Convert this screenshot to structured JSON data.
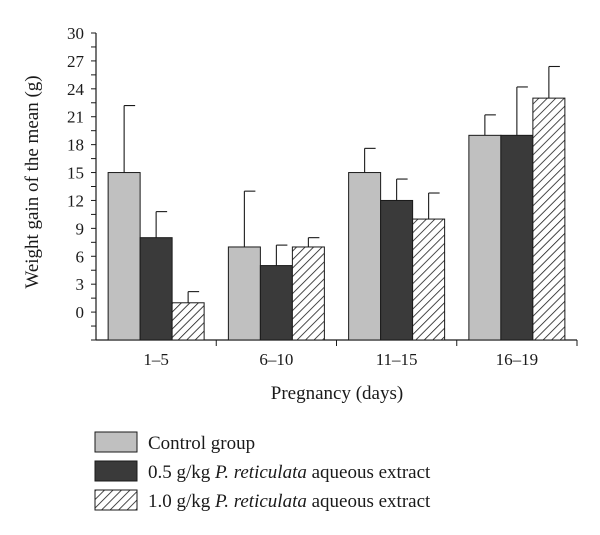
{
  "chart_data": {
    "type": "bar",
    "xlabel": "Pregnancy (days)",
    "ylabel": "Weight gain of the mean (g)",
    "ylim": [
      -3,
      30
    ],
    "yticks": [
      0,
      3,
      6,
      9,
      12,
      15,
      18,
      21,
      24,
      27,
      30
    ],
    "grid": false,
    "legend_position": "bottom-left",
    "categories": [
      "1–5",
      "6–10",
      "11–15",
      "16–19"
    ],
    "series": [
      {
        "name": "Control group",
        "fill": "#c0c0c0",
        "pattern": "solid",
        "values": [
          15,
          7,
          15,
          19
        ],
        "error_plus": [
          7.2,
          6.0,
          2.6,
          2.2
        ]
      },
      {
        "name": "0.5 g/kg P. reticulata aqueous extract",
        "name_parts": [
          "0.5 g/kg ",
          "P. reticulata",
          " aqueous extract"
        ],
        "fill": "#3a3a3a",
        "pattern": "solid",
        "values": [
          8,
          5,
          12,
          19
        ],
        "error_plus": [
          2.8,
          2.2,
          2.3,
          5.2
        ]
      },
      {
        "name": "1.0 g/kg P. reticulata aqueous extract",
        "name_parts": [
          "1.0 g/kg ",
          "P. reticulata",
          " aqueous extract"
        ],
        "fill": "#ffffff",
        "pattern": "diagonal-hatch",
        "values": [
          1,
          7,
          10,
          23
        ],
        "error_plus": [
          1.2,
          1.0,
          2.8,
          3.4
        ]
      }
    ]
  }
}
